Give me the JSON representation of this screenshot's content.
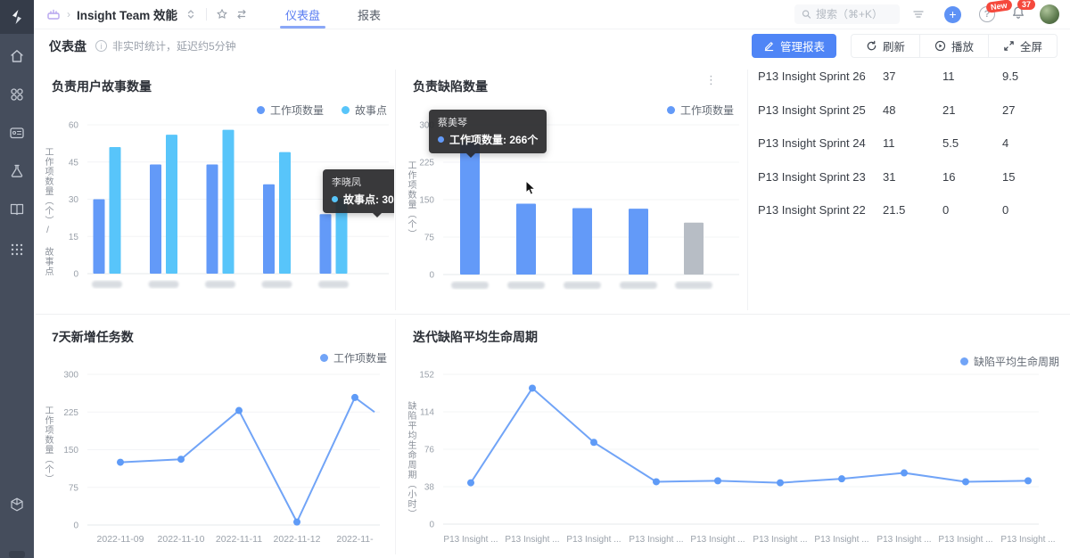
{
  "topbar": {
    "breadcrumb_title": "Insight Team 效能",
    "tabs": [
      {
        "label": "仪表盘",
        "active": true
      },
      {
        "label": "报表",
        "active": false
      }
    ],
    "search_placeholder": "搜索（⌘+K）",
    "new_badge": "New",
    "notification_count": "37"
  },
  "toolbar": {
    "title": "仪表盘",
    "notice": "非实时统计，延迟约5分钟",
    "manage_label": "管理报表",
    "refresh_label": "刷新",
    "play_label": "播放",
    "fullscreen_label": "全屏"
  },
  "sidebar": {
    "icons": [
      "home",
      "apps",
      "card",
      "flask",
      "book",
      "grid"
    ],
    "bottom_icons": [
      "cube"
    ]
  },
  "colors": {
    "primary_blue": "#4f85f6",
    "series_blue": "#639af8",
    "series_sky": "#58c5fa",
    "series_gray": "#b7bdc5",
    "line_blue": "#71a4f7",
    "badge_red": "#f5493d"
  },
  "chart_data": [
    {
      "id": "story-count",
      "type": "bar",
      "title": "负责用户故事数量",
      "ylabel": "工作项数量（个）/ 故事点",
      "ylim": [
        0,
        60
      ],
      "yticks": [
        0,
        15,
        30,
        45,
        60
      ],
      "categories": [
        "",
        "",
        "",
        "",
        ""
      ],
      "categories_masked": true,
      "series": [
        {
          "name": "工作项数量",
          "color": "#639af8",
          "values": [
            30,
            44,
            44,
            36,
            24
          ]
        },
        {
          "name": "故事点",
          "color": "#58c5fa",
          "values": [
            51,
            56,
            58,
            49,
            30.4
          ]
        }
      ],
      "tooltip": {
        "name": "李晓凤",
        "line": "故事点: 30.4",
        "dot_color": "#58c5fa"
      }
    },
    {
      "id": "bug-count",
      "type": "bar",
      "title": "负责缺陷数量",
      "ylabel": "工作项数量（个）",
      "ylim": [
        0,
        300
      ],
      "yticks": [
        0,
        75,
        150,
        225,
        300
      ],
      "categories": [
        "",
        "",
        "",
        "",
        ""
      ],
      "categories_masked": true,
      "series": [
        {
          "name": "工作项数量",
          "color": "#639af8",
          "values": [
            266,
            142,
            133,
            132,
            104
          ],
          "bar_colors": [
            "#639af8",
            "#639af8",
            "#639af8",
            "#639af8",
            "#b7bdc5"
          ]
        }
      ],
      "tooltip": {
        "name": "蔡美琴",
        "line": "工作项数量: 266个",
        "dot_color": "#639af8"
      },
      "has_more_menu": true
    },
    {
      "id": "new-tasks",
      "type": "line",
      "title": "7天新增任务数",
      "ylabel": "工作项数量（个）",
      "ylim": [
        0,
        300
      ],
      "yticks": [
        0,
        75,
        150,
        225,
        300
      ],
      "categories": [
        "2022-11-09",
        "2022-11-10",
        "2022-11-11",
        "2022-11-12",
        "2022-11-"
      ],
      "series": [
        {
          "name": "工作项数量",
          "color": "#71a4f7",
          "values": [
            125,
            131,
            228,
            6,
            254
          ]
        }
      ],
      "overflow_value": 225
    },
    {
      "id": "bug-lifecycle",
      "type": "line",
      "title": "迭代缺陷平均生命周期",
      "ylabel": "缺陷平均生命周期（小时）",
      "ylim": [
        0,
        152
      ],
      "yticks": [
        0,
        38,
        76,
        114,
        152
      ],
      "categories": [
        "P13 Insight ...",
        "P13 Insight ...",
        "P13 Insight ...",
        "P13 Insight ...",
        "P13 Insight ...",
        "P13 Insight ...",
        "P13 Insight ...",
        "P13 Insight ...",
        "P13 Insight ...",
        "P13 Insight ..."
      ],
      "series": [
        {
          "name": "缺陷平均生命周期",
          "color": "#71a4f7",
          "values": [
            42,
            138,
            83,
            43,
            44,
            42,
            46,
            52,
            43,
            44
          ]
        }
      ]
    }
  ],
  "sprint_table": {
    "rows": [
      {
        "name": "P13 Insight Sprint 26",
        "values": [
          "37",
          "11",
          "9.5"
        ]
      },
      {
        "name": "P13 Insight Sprint 25",
        "values": [
          "48",
          "21",
          "27"
        ]
      },
      {
        "name": "P13 Insight Sprint 24",
        "values": [
          "11",
          "5.5",
          "4"
        ]
      },
      {
        "name": "P13 Insight Sprint 23",
        "values": [
          "31",
          "16",
          "15"
        ]
      },
      {
        "name": "P13 Insight Sprint 22",
        "values": [
          "21.5",
          "0",
          "0"
        ]
      }
    ]
  }
}
